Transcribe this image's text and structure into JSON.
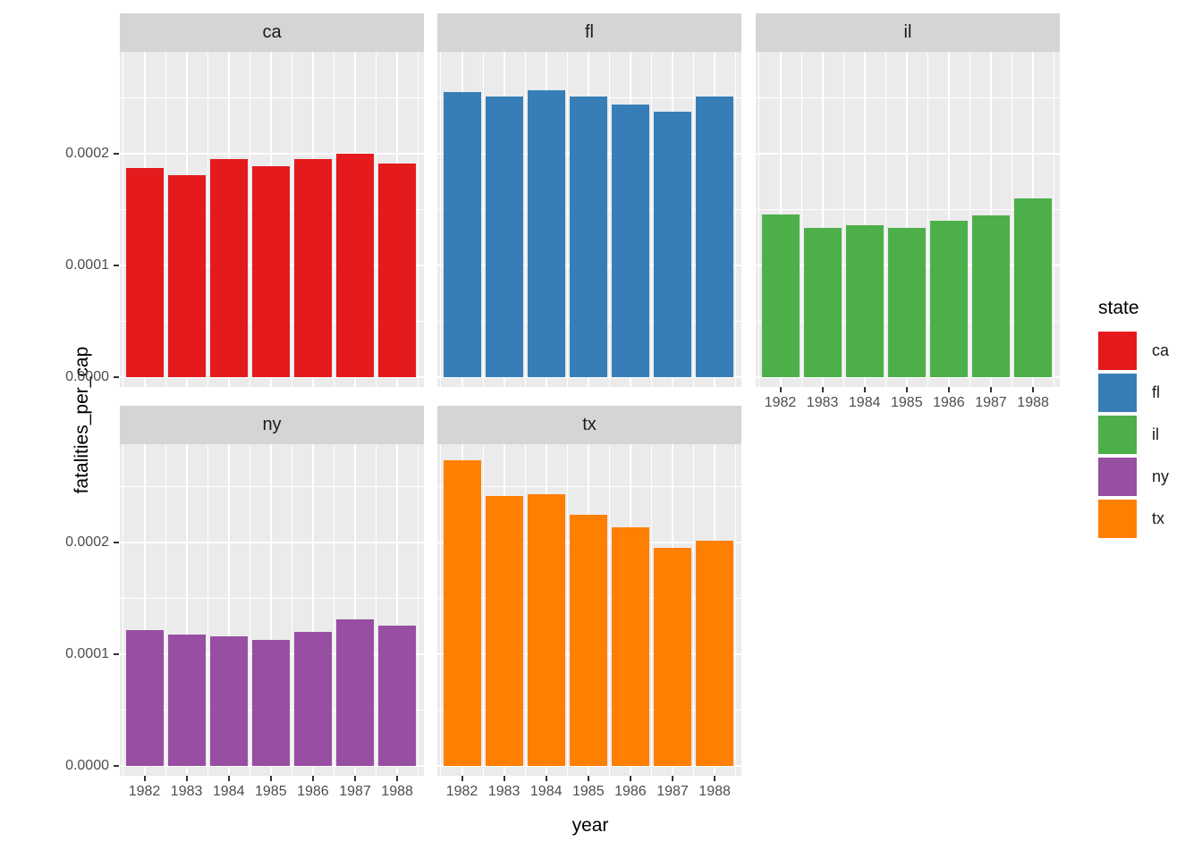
{
  "chart_data": {
    "type": "bar",
    "facet_by": "state",
    "x_label": "year",
    "y_label": "fatalities_per_cap",
    "x": [
      1982,
      1983,
      1984,
      1985,
      1986,
      1987,
      1988
    ],
    "x_tick_labels": [
      "1982",
      "1983",
      "1984",
      "1985",
      "1986",
      "1987",
      "1988"
    ],
    "y_ticks": [
      0,
      0.0001,
      0.0002
    ],
    "y_tick_labels": [
      "0.0000",
      "0.0001",
      "0.0002"
    ],
    "y_minor_ticks": [
      5e-05,
      0.00015,
      0.00025
    ],
    "ylim": [
      0,
      0.00029
    ],
    "grid": true,
    "facets": [
      {
        "label": "ca",
        "color": "#E41A1C",
        "values": [
          0.000187,
          0.000181,
          0.000195,
          0.000189,
          0.000195,
          0.0002,
          0.000191
        ]
      },
      {
        "label": "fl",
        "color": "#377EB8",
        "values": [
          0.000255,
          0.000251,
          0.000257,
          0.000251,
          0.000244,
          0.000238,
          0.000251
        ]
      },
      {
        "label": "il",
        "color": "#4DAF4A",
        "values": [
          0.000146,
          0.000134,
          0.000136,
          0.000134,
          0.00014,
          0.000145,
          0.00016
        ]
      },
      {
        "label": "ny",
        "color": "#984EA3",
        "values": [
          0.000122,
          0.000118,
          0.000116,
          0.000113,
          0.00012,
          0.000131,
          0.000126
        ]
      },
      {
        "label": "tx",
        "color": "#FF7F00",
        "values": [
          0.000274,
          0.000242,
          0.000243,
          0.000225,
          0.000214,
          0.000195,
          0.000202
        ]
      }
    ],
    "legend": {
      "title": "state",
      "position": "right",
      "entries": [
        {
          "label": "ca",
          "color": "#E41A1C"
        },
        {
          "label": "fl",
          "color": "#377EB8"
        },
        {
          "label": "il",
          "color": "#4DAF4A"
        },
        {
          "label": "ny",
          "color": "#984EA3"
        },
        {
          "label": "tx",
          "color": "#FF7F00"
        }
      ]
    },
    "colors": {
      "panel_bg": "#EBEBEB",
      "strip_bg": "#D5D5D5",
      "grid": "#FFFFFF",
      "tick_text": "#4D4D4D",
      "tick_mark": "#333333"
    }
  }
}
